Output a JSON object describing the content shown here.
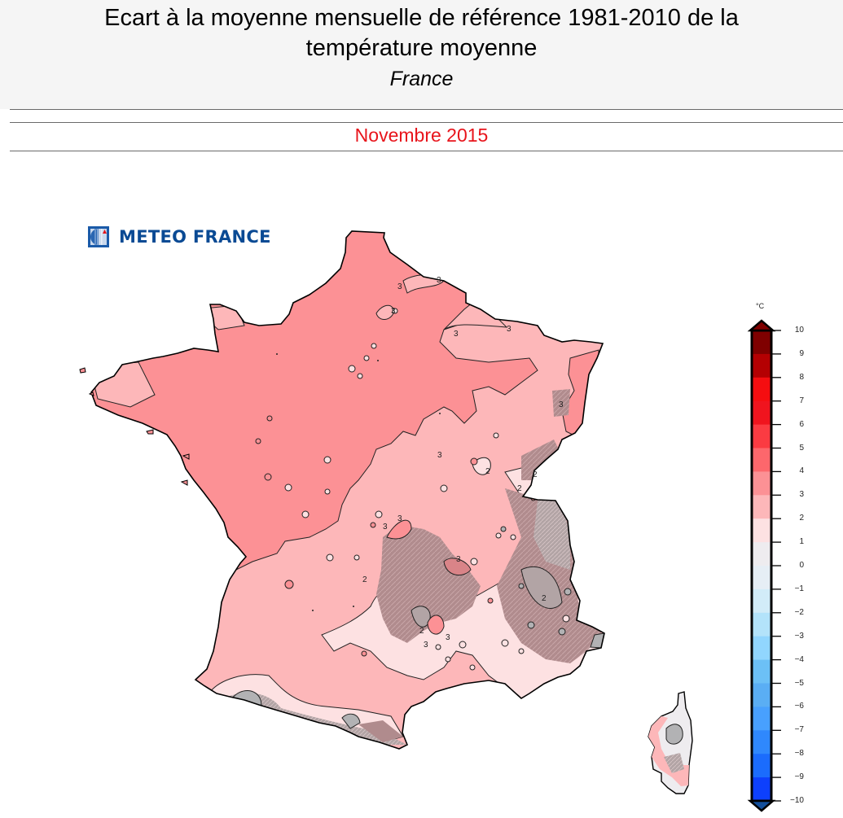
{
  "header": {
    "title_line1": "Ecart à la moyenne mensuelle de référence 1981-2010 de la",
    "title_line2": "température moyenne",
    "region": "France",
    "period": "Novembre 2015",
    "period_color": "#e8141b"
  },
  "logo": {
    "icon": "meteo-france-logo-icon",
    "text": "METEO FRANCE",
    "color": "#0a4a94"
  },
  "map": {
    "description": "Écart de température moyenne (°C) par rapport à la normale 1981-2010, Novembre 2015",
    "zones": [
      {
        "name": "Nord-Ouest / Bretagne / Centre / Nord",
        "range": "3 à 4 °C",
        "color": "#fc9195"
      },
      {
        "name": "Sud-Ouest / Est / Bourgogne",
        "range": "2 à 3 °C",
        "color": "#fdb7b9"
      },
      {
        "name": "Languedoc intérieur / Provence",
        "range": "1 à 2 °C",
        "color": "#fde1e2"
      },
      {
        "name": "Massif Central / Alpes / Pyrénées (relief)",
        "range": "0 à 3 °C (ombrage relief)",
        "color": "#b08b8d"
      },
      {
        "name": "Sommets Pyrénées / Alpes / Corse",
        "range": "0 à 1 °C",
        "color": "#b2b2b4"
      }
    ],
    "contour_labels": [
      "3",
      "3",
      "3",
      "3",
      "3",
      "2",
      "2",
      "2",
      "2",
      "3",
      "3"
    ]
  },
  "colorbar": {
    "unit": "°C",
    "ticks": [
      "10",
      "9",
      "8",
      "7",
      "6",
      "5",
      "4",
      "3",
      "2",
      "1",
      "0",
      "−1",
      "−2",
      "−3",
      "−4",
      "−5",
      "−6",
      "−7",
      "−8",
      "−9",
      "−10"
    ],
    "bins": [
      {
        "range": "9 à 10",
        "color": "#7f0000"
      },
      {
        "range": "8 à 9",
        "color": "#b40002"
      },
      {
        "range": "7 à 8",
        "color": "#f50d10"
      },
      {
        "range": "6 à 7",
        "color": "#f0141e"
      },
      {
        "range": "5 à 6",
        "color": "#fb3b42"
      },
      {
        "range": "4 à 5",
        "color": "#fd676c"
      },
      {
        "range": "3 à 4",
        "color": "#fc9195"
      },
      {
        "range": "2 à 3",
        "color": "#fdb7b9"
      },
      {
        "range": "1 à 2",
        "color": "#fde1e2"
      },
      {
        "range": "0 à 1",
        "color": "#eeecef"
      },
      {
        "range": "−1 à 0",
        "color": "#e6eef5"
      },
      {
        "range": "−2 à −1",
        "color": "#d2ecf8"
      },
      {
        "range": "−3 à −2",
        "color": "#b3e3fa"
      },
      {
        "range": "−4 à −3",
        "color": "#91d6fe"
      },
      {
        "range": "−5 à −4",
        "color": "#6cc0f6"
      },
      {
        "range": "−6 à −5",
        "color": "#5aaef4"
      },
      {
        "range": "−7 à −6",
        "color": "#48a0fe"
      },
      {
        "range": "−8 à −7",
        "color": "#2f88fd"
      },
      {
        "range": "−9 à −8",
        "color": "#1b6cfd"
      },
      {
        "range": "−10 à −9",
        "color": "#0d40fd"
      }
    ],
    "over_color": "#7f0000",
    "under_color": "#134f9b"
  }
}
